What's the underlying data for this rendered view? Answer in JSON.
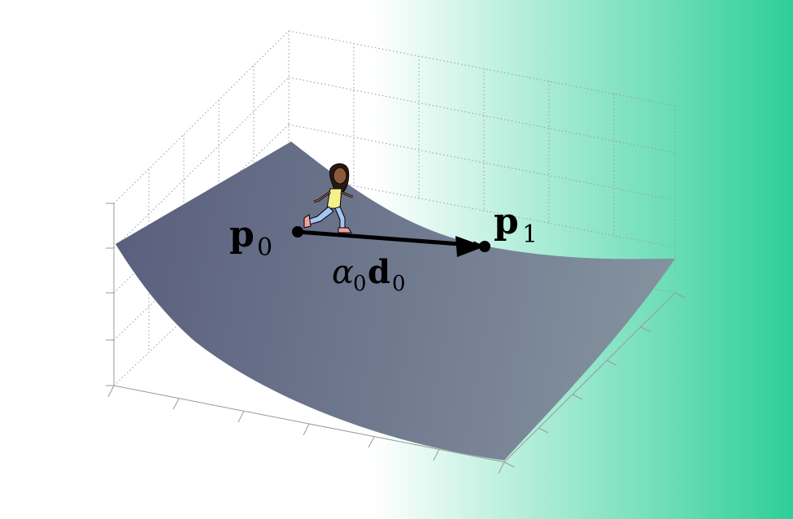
{
  "colors": {
    "gradient_start": "#ffffff",
    "gradient_end": "#2ecf98",
    "surface_dark": "#5a5f7d",
    "surface_light": "#8594a0",
    "grid_line": "#9a9a9a",
    "vector": "#000000"
  },
  "labels": {
    "p0_main": "p",
    "p0_sub": "0",
    "p1_main": "p",
    "p1_sub": "1",
    "step_alpha": "α",
    "step_alpha_sub": "0",
    "step_d": "d",
    "step_d_sub": "0"
  },
  "icons": {
    "walker": "walking-person-icon"
  }
}
